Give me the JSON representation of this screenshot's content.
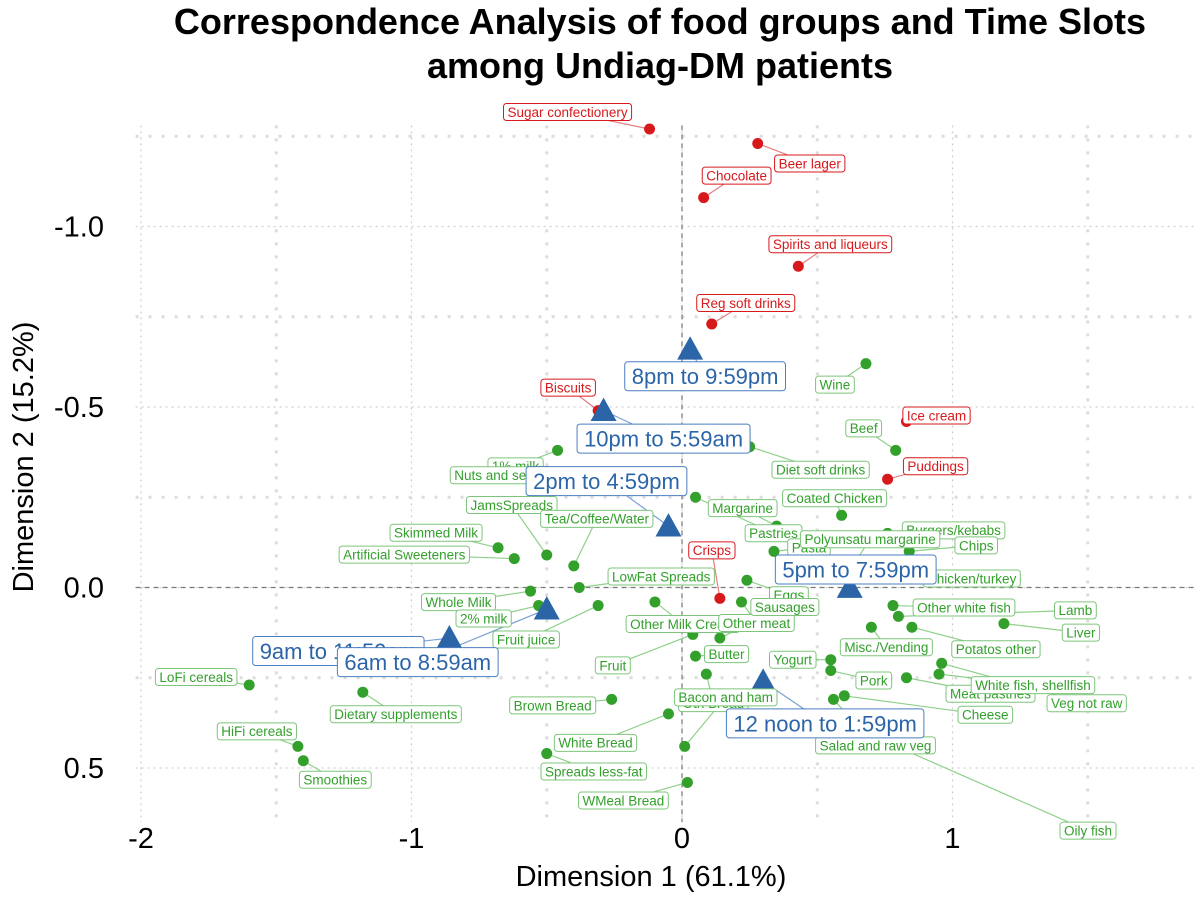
{
  "chart_data": {
    "type": "scatter",
    "title": "Correspondence Analysis of food groups and Time Slots\namong Undiag-DM patients",
    "xlabel": "Dimension 1 (61.1%)",
    "ylabel": "Dimension 2 (15.2%)",
    "xlim": [
      -2.02,
      1.9
    ],
    "ylim": [
      -1.28,
      0.65
    ],
    "y_reversed": true,
    "x_ticks": [
      {
        "value": -2,
        "label": "-2"
      },
      {
        "value": -1,
        "label": "-1"
      },
      {
        "value": 0,
        "label": "0"
      },
      {
        "value": 1,
        "label": "1"
      }
    ],
    "y_ticks": [
      {
        "value": -1.0,
        "label": "-1.0"
      },
      {
        "value": -0.5,
        "label": "-0.5"
      },
      {
        "value": 0.0,
        "label": "0.0"
      },
      {
        "value": 0.5,
        "label": "0.5"
      }
    ],
    "grid": true,
    "reference_lines": {
      "x": 0,
      "y": 0,
      "style": "dashed"
    },
    "colors": {
      "food_red": "#d7191c",
      "food_green": "#33a02c",
      "time_slot": "#2b65a8",
      "label_green_border": "#7dc57a"
    },
    "series": [
      {
        "name": "Food groups (highlighted)",
        "color": "#d7191c",
        "marker": "circle",
        "points": [
          {
            "label": "Sugar confectionery",
            "x": -0.12,
            "y": -1.27
          },
          {
            "label": "Beer lager",
            "x": 0.28,
            "y": -1.23
          },
          {
            "label": "Chocolate",
            "x": 0.08,
            "y": -1.08
          },
          {
            "label": "Spirits and liqueurs",
            "x": 0.43,
            "y": -0.89
          },
          {
            "label": "Reg soft drinks",
            "x": 0.11,
            "y": -0.73
          },
          {
            "label": "Biscuits",
            "x": -0.31,
            "y": -0.49
          },
          {
            "label": "Ice cream",
            "x": 0.83,
            "y": -0.46
          },
          {
            "label": "Puddings",
            "x": 0.76,
            "y": -0.3
          },
          {
            "label": "Crisps",
            "x": 0.14,
            "y": 0.03
          }
        ]
      },
      {
        "name": "Food groups",
        "color": "#33a02c",
        "marker": "circle",
        "points": [
          {
            "label": "Wine",
            "x": 0.68,
            "y": -0.62
          },
          {
            "label": "Beef",
            "x": 0.79,
            "y": -0.38
          },
          {
            "label": "1% milk",
            "x": -0.46,
            "y": -0.38
          },
          {
            "label": "Diet soft drinks",
            "x": 0.25,
            "y": -0.39
          },
          {
            "label": "Nuts and seeds",
            "x": -0.31,
            "y": -0.3
          },
          {
            "label": "Pastries",
            "x": 0.05,
            "y": -0.25
          },
          {
            "label": "Coated Chicken",
            "x": 0.59,
            "y": -0.2
          },
          {
            "label": "Burgers/kebabs",
            "x": 0.76,
            "y": -0.15
          },
          {
            "label": "Skimmed Milk",
            "x": -0.68,
            "y": -0.11
          },
          {
            "label": "JamsSpreads",
            "x": -0.5,
            "y": -0.09
          },
          {
            "label": "Margarine",
            "x": 0.35,
            "y": -0.17
          },
          {
            "label": "Chips",
            "x": 0.84,
            "y": -0.1
          },
          {
            "label": "Artificial Sweeteners",
            "x": -0.62,
            "y": -0.08
          },
          {
            "label": "Tea/Coffee/Water",
            "x": -0.4,
            "y": -0.06
          },
          {
            "label": "Pasta",
            "x": 0.34,
            "y": -0.1
          },
          {
            "label": "Polyunsatu margarine",
            "x": 0.64,
            "y": -0.07
          },
          {
            "label": "Chicken/turkey",
            "x": 0.79,
            "y": -0.05
          },
          {
            "label": "LowFat Spreads",
            "x": -0.38,
            "y": 0.0
          },
          {
            "label": "Eggs",
            "x": 0.24,
            "y": -0.02
          },
          {
            "label": "Whole Milk",
            "x": -0.56,
            "y": 0.01
          },
          {
            "label": "2% milk",
            "x": -0.53,
            "y": 0.05
          },
          {
            "label": "Fruit juice",
            "x": -0.31,
            "y": 0.05
          },
          {
            "label": "Other Milk Cream",
            "x": -0.1,
            "y": 0.04
          },
          {
            "label": "Other white fish",
            "x": 0.78,
            "y": 0.05
          },
          {
            "label": "Lamb",
            "x": 0.8,
            "y": 0.08
          },
          {
            "label": "Other meat",
            "x": 0.22,
            "y": 0.04
          },
          {
            "label": "Liver",
            "x": 1.19,
            "y": 0.1
          },
          {
            "label": "Misc./Vending",
            "x": 0.7,
            "y": 0.11
          },
          {
            "label": "Potatos other",
            "x": 0.85,
            "y": 0.11
          },
          {
            "label": "Fruit",
            "x": 0.04,
            "y": 0.13
          },
          {
            "label": "Sausages",
            "x": 0.14,
            "y": 0.14
          },
          {
            "label": "Veg not raw",
            "x": 0.96,
            "y": 0.21
          },
          {
            "label": "Yogurt",
            "x": 0.55,
            "y": 0.2
          },
          {
            "label": "Pork",
            "x": 0.55,
            "y": 0.23
          },
          {
            "label": "Meat pastries",
            "x": 0.83,
            "y": 0.25
          },
          {
            "label": "Oth Bread",
            "x": 0.09,
            "y": 0.24
          },
          {
            "label": "Butter",
            "x": 0.05,
            "y": 0.19
          },
          {
            "label": "Dietary supplements",
            "x": -1.18,
            "y": 0.29
          },
          {
            "label": "Brown Bread",
            "x": -0.26,
            "y": 0.31
          },
          {
            "label": "White fish, shellfish",
            "x": 0.95,
            "y": 0.24
          },
          {
            "label": "Cheese",
            "x": 0.6,
            "y": 0.3
          },
          {
            "label": "White Bread",
            "x": -0.05,
            "y": 0.35
          },
          {
            "label": "Salad and raw veg",
            "x": 0.56,
            "y": 0.31
          },
          {
            "label": "LoFi cereals",
            "x": -1.6,
            "y": 0.27
          },
          {
            "label": "HiFi cereals",
            "x": -1.42,
            "y": 0.44
          },
          {
            "label": "Smoothies",
            "x": -1.4,
            "y": 0.48
          },
          {
            "label": "Spreads less-fat",
            "x": -0.5,
            "y": 0.46
          },
          {
            "label": "Bacon and ham",
            "x": 0.01,
            "y": 0.44
          },
          {
            "label": "Oily fish",
            "x": 0.61,
            "y": 0.38
          },
          {
            "label": "WMeal Bread",
            "x": 0.02,
            "y": 0.54
          }
        ]
      },
      {
        "name": "Time Slots",
        "color": "#2b65a8",
        "marker": "triangle",
        "points": [
          {
            "label": "8pm to 9:59pm",
            "x": 0.03,
            "y": -0.66
          },
          {
            "label": "10pm to 5:59am",
            "x": -0.29,
            "y": -0.49
          },
          {
            "label": "2pm to 4:59pm",
            "x": -0.05,
            "y": -0.17
          },
          {
            "label": "5pm to 7:59pm",
            "x": 0.62,
            "y": 0.0
          },
          {
            "label": "9am to 11:59am",
            "x": -0.86,
            "y": 0.14
          },
          {
            "label": "6am to 8:59am",
            "x": -0.5,
            "y": 0.06
          },
          {
            "label": "12 noon to 1:59pm",
            "x": 0.3,
            "y": 0.26
          }
        ]
      }
    ]
  }
}
